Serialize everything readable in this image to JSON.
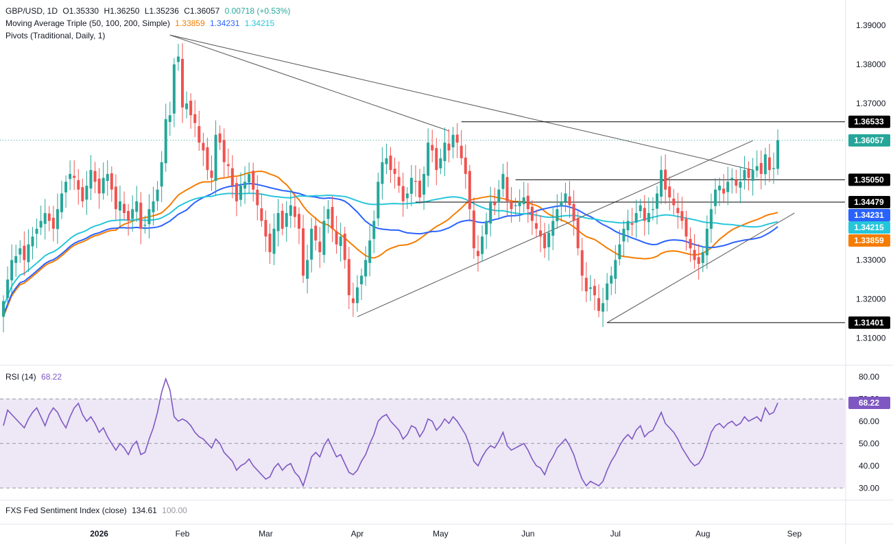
{
  "header": {
    "symbol": "GBP/USD, 1D",
    "open": "O1.35330",
    "high": "H1.36250",
    "low": "L1.35236",
    "close": "C1.36057",
    "change": "0.00718 (+0.53%)",
    "ma_label": "Moving Average Triple (50, 100, 200, Simple)",
    "ma_values": [
      "1.33859",
      "1.34231",
      "1.34215"
    ],
    "pivots_label": "Pivots (Traditional, Daily, 1)"
  },
  "rsi_header": {
    "label": "RSI (14)",
    "value": "68.22"
  },
  "fxs_header": {
    "label": "FXS Fed Sentiment Index (close)",
    "v1": "134.61",
    "v2": "100.00"
  },
  "colors": {
    "up": "#26a69a",
    "down": "#ef5350",
    "ma50": "#f57c00",
    "ma100": "#2962ff",
    "ma200": "#26c6da",
    "rsi": "#7e57c2",
    "rsi_fill": "#ede7f6"
  },
  "chart_data": [
    {
      "type": "candlestick",
      "series_names": [
        "GBP/USD",
        "MA 50",
        "MA 100",
        "MA 200"
      ],
      "y_ticks": [
        1.31,
        1.32,
        1.33,
        1.34,
        1.35,
        1.36,
        1.37,
        1.38,
        1.39
      ],
      "y_tick_labels": [
        "1.31000",
        "1.32000",
        "1.33000",
        "1.34000",
        "1.35000",
        "1.36000",
        "1.37000",
        "1.38000",
        "1.39000"
      ],
      "ylim": [
        1.304,
        1.394
      ],
      "x_labels": [
        "2026",
        "Feb",
        "Mar",
        "Apr",
        "May",
        "Jun",
        "Jul",
        "Aug",
        "Sep"
      ],
      "x_label_index": [
        23,
        43,
        63,
        85,
        105,
        126,
        147,
        168,
        190
      ],
      "x_count": 202,
      "close": [
        1.3195,
        1.325,
        1.33,
        1.331,
        1.333,
        1.33,
        1.334,
        1.336,
        1.338,
        1.34,
        1.342,
        1.34,
        1.338,
        1.343,
        1.347,
        1.35,
        1.352,
        1.351,
        1.348,
        1.345,
        1.349,
        1.353,
        1.35,
        1.347,
        1.351,
        1.352,
        1.348,
        1.343,
        1.345,
        1.342,
        1.34,
        1.343,
        1.345,
        1.338,
        1.339,
        1.343,
        1.345,
        1.348,
        1.355,
        1.366,
        1.367,
        1.38,
        1.382,
        1.369,
        1.37,
        1.367,
        1.365,
        1.36,
        1.358,
        1.353,
        1.351,
        1.362,
        1.36,
        1.355,
        1.354,
        1.349,
        1.345,
        1.349,
        1.35,
        1.352,
        1.348,
        1.344,
        1.34,
        1.336,
        1.332,
        1.338,
        1.342,
        1.338,
        1.342,
        1.344,
        1.341,
        1.338,
        1.326,
        1.33,
        1.338,
        1.335,
        1.332,
        1.34,
        1.343,
        1.338,
        1.334,
        1.336,
        1.33,
        1.321,
        1.319,
        1.323,
        1.326,
        1.33,
        1.335,
        1.34,
        1.35,
        1.355,
        1.356,
        1.353,
        1.352,
        1.349,
        1.345,
        1.347,
        1.351,
        1.35,
        1.346,
        1.352,
        1.36,
        1.358,
        1.353,
        1.356,
        1.36,
        1.358,
        1.362,
        1.36,
        1.356,
        1.352,
        1.343,
        1.333,
        1.331,
        1.336,
        1.34,
        1.345,
        1.344,
        1.348,
        1.352,
        1.345,
        1.343,
        1.344,
        1.345,
        1.346,
        1.343,
        1.34,
        1.338,
        1.336,
        1.333,
        1.337,
        1.34,
        1.343,
        1.345,
        1.347,
        1.344,
        1.34,
        1.333,
        1.326,
        1.322,
        1.323,
        1.321,
        1.317,
        1.319,
        1.324,
        1.326,
        1.33,
        1.334,
        1.338,
        1.34,
        1.339,
        1.342,
        1.344,
        1.34,
        1.342,
        1.343,
        1.347,
        1.353,
        1.348,
        1.346,
        1.344,
        1.342,
        1.34,
        1.336,
        1.333,
        1.33,
        1.329,
        1.332,
        1.338,
        1.343,
        1.348,
        1.349,
        1.347,
        1.35,
        1.351,
        1.349,
        1.35,
        1.353,
        1.351,
        1.353,
        1.354,
        1.352,
        1.357,
        1.353,
        1.3535,
        1.3606
      ],
      "rsi": [
        58,
        65,
        63,
        61,
        59,
        57,
        61,
        64,
        66,
        62,
        58,
        63,
        66,
        64,
        60,
        57,
        62,
        66,
        68,
        63,
        60,
        62,
        59,
        55,
        57,
        53,
        50,
        47,
        50,
        48,
        45,
        49,
        51,
        45,
        46,
        52,
        57,
        64,
        73,
        79,
        74,
        62,
        60,
        61,
        60,
        58,
        55,
        53,
        52,
        50,
        48,
        52,
        50,
        46,
        44,
        42,
        38,
        40,
        41,
        43,
        40,
        38,
        36,
        34,
        35,
        39,
        41,
        38,
        40,
        41,
        37,
        35,
        31,
        37,
        44,
        46,
        44,
        49,
        52,
        48,
        44,
        45,
        41,
        37,
        36,
        38,
        42,
        45,
        50,
        54,
        60,
        62,
        63,
        60,
        58,
        56,
        52,
        54,
        58,
        57,
        53,
        56,
        61,
        60,
        56,
        58,
        61,
        59,
        62,
        60,
        57,
        54,
        49,
        42,
        40,
        44,
        47,
        49,
        48,
        51,
        55,
        49,
        47,
        48,
        49,
        50,
        47,
        43,
        40,
        39,
        36,
        41,
        44,
        48,
        50,
        52,
        49,
        45,
        39,
        34,
        31,
        33,
        32,
        31,
        33,
        38,
        42,
        45,
        49,
        52,
        54,
        52,
        56,
        58,
        53,
        55,
        56,
        60,
        64,
        59,
        57,
        55,
        52,
        48,
        45,
        42,
        40,
        41,
        44,
        49,
        55,
        58,
        59,
        57,
        59,
        60,
        58,
        59,
        62,
        60,
        61,
        62,
        60,
        66,
        63,
        64,
        68.22
      ],
      "rsi_ylim": [
        27,
        83
      ],
      "rsi_ticks": [
        30,
        40,
        50,
        60,
        70,
        80
      ],
      "rsi_tick_labels": [
        "30.00",
        "40.00",
        "50.00",
        "60.00",
        "70.00",
        "80.00"
      ],
      "rsi_bands": [
        30,
        50,
        70
      ],
      "rsi_last": "68.22",
      "trendlines": [
        [
          [
            40,
            1.3875
          ],
          [
            107,
            1.363
          ]
        ],
        [
          [
            85,
            1.3155
          ],
          [
            180,
            1.3605
          ]
        ],
        [
          [
            40,
            1.3875
          ],
          [
            180,
            1.353
          ]
        ],
        [
          [
            145,
            1.314
          ],
          [
            190,
            1.342
          ]
        ]
      ],
      "pivots": [
        {
          "value": 1.36533,
          "label": "1.36533",
          "from": 110
        },
        {
          "value": 1.3505,
          "label": "1.35050",
          "from": 123
        },
        {
          "value": 1.34479,
          "label": "1.34479",
          "from": 99
        },
        {
          "value": 1.31401,
          "label": "1.31401",
          "from": 145
        }
      ],
      "badges": [
        {
          "label": "1.36533",
          "bg": "#000000",
          "fg": "#ffffff"
        },
        {
          "label": "1.36057",
          "bg": "#26a69a",
          "fg": "#ffffff"
        },
        {
          "label": "1.35050",
          "bg": "#000000",
          "fg": "#ffffff"
        },
        {
          "label": "1.34479",
          "bg": "#000000",
          "fg": "#ffffff"
        },
        {
          "label": "1.34231",
          "bg": "#2962ff",
          "fg": "#ffffff"
        },
        {
          "label": "1.34215",
          "bg": "#26c6da",
          "fg": "#ffffff"
        },
        {
          "label": "1.33859",
          "bg": "#f57c00",
          "fg": "#ffffff"
        },
        {
          "label": "1.31401",
          "bg": "#000000",
          "fg": "#ffffff"
        }
      ]
    }
  ]
}
